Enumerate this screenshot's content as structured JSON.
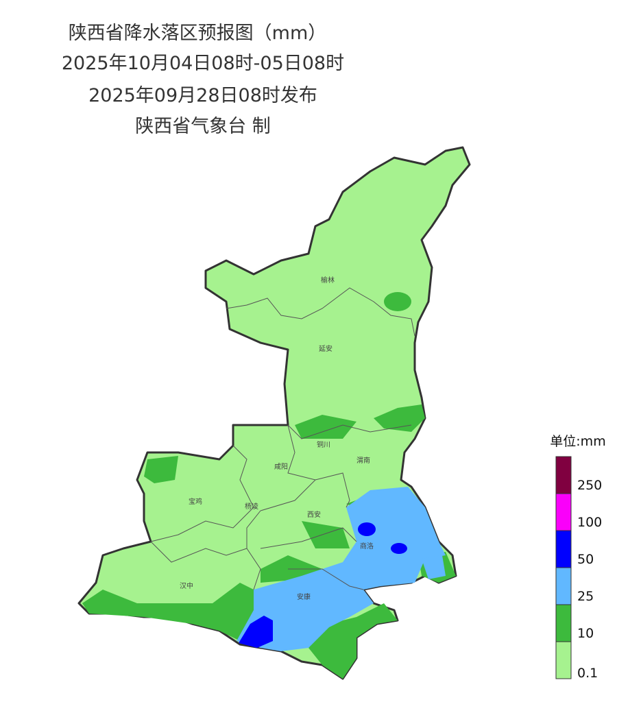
{
  "header": {
    "title": "陕西省降水落区预报图（mm）",
    "period": "2025年10月04日08时-05日08时",
    "issued": "2025年09月28日08时发布",
    "producer": "陕西省气象台 制"
  },
  "cities": [
    "榆林",
    "延安",
    "铜川",
    "渭南",
    "咸阳",
    "宝鸡",
    "杨凌",
    "西安",
    "商洛",
    "汉中",
    "安康"
  ],
  "legend": {
    "unit": "单位:mm",
    "labels": [
      "0.1",
      "10",
      "25",
      "50",
      "100",
      "250"
    ],
    "colors": [
      "#a6f28f",
      "#3dba3d",
      "#61b8ff",
      "#0000fe",
      "#fa00fa",
      "#800040"
    ]
  }
}
